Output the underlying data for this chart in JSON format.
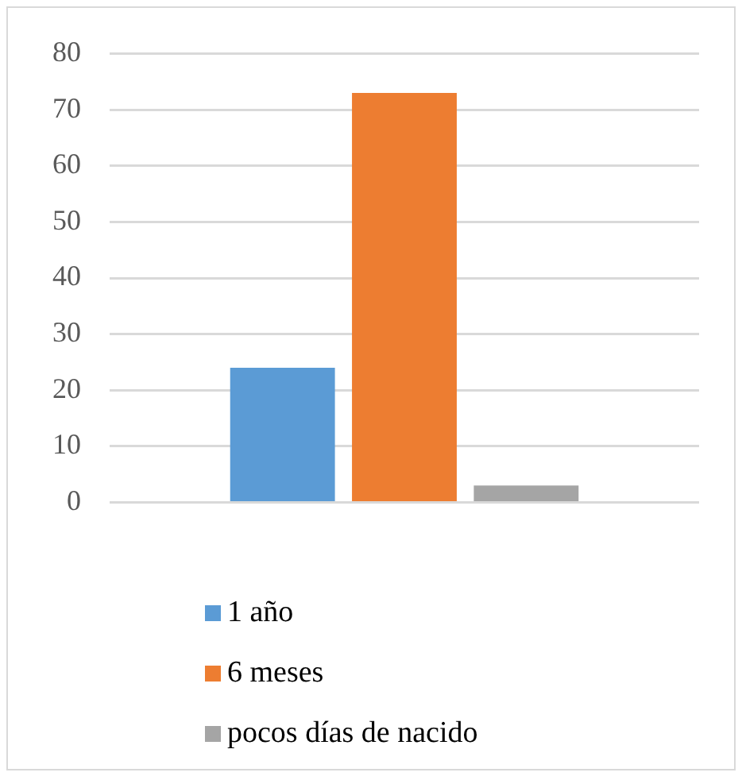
{
  "chart_data": {
    "type": "bar",
    "categories": [
      null
    ],
    "series": [
      {
        "name": "1 año",
        "color": "#5b9bd5",
        "values": [
          24
        ]
      },
      {
        "name": "6 meses",
        "color": "#ed7d31",
        "values": [
          73
        ]
      },
      {
        "name": "pocos días de nacido",
        "color": "#a5a5a5",
        "values": [
          3
        ]
      }
    ],
    "ylim": [
      0,
      80
    ],
    "yticks": [
      0,
      10,
      20,
      30,
      40,
      50,
      60,
      70,
      80
    ],
    "grid": "y",
    "legend": "bottom"
  }
}
